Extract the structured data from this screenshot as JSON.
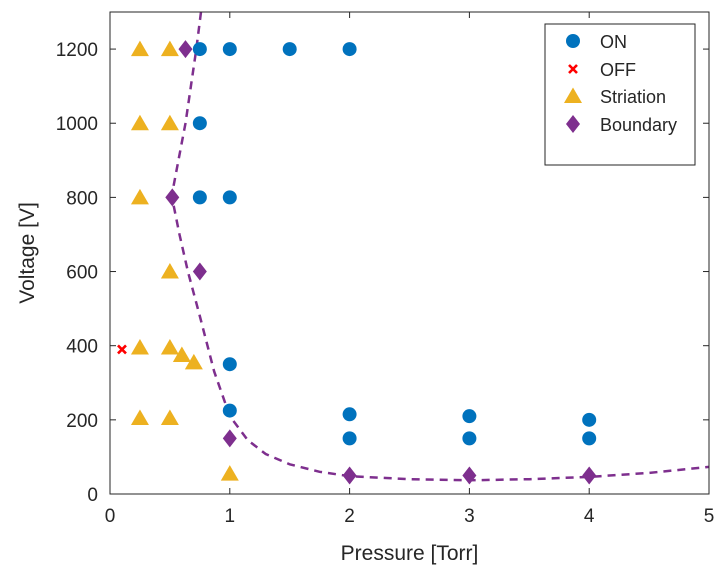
{
  "chart_data": {
    "type": "scatter",
    "xlabel": "Pressure [Torr]",
    "ylabel": "Voltage [V]",
    "xlim": [
      0,
      5
    ],
    "ylim": [
      0,
      1300
    ],
    "xticks": [
      0,
      1,
      2,
      3,
      4,
      5
    ],
    "yticks": [
      0,
      200,
      400,
      600,
      800,
      1000,
      1200
    ],
    "grid": false,
    "legend_position": "top-right",
    "series": [
      {
        "name": "ON",
        "marker": "circle",
        "color": "#0072BD",
        "points": [
          [
            0.75,
            1200
          ],
          [
            1,
            1200
          ],
          [
            1.5,
            1200
          ],
          [
            2,
            1200
          ],
          [
            0.75,
            1000
          ],
          [
            0.75,
            800
          ],
          [
            1,
            800
          ],
          [
            1,
            350
          ],
          [
            1,
            225
          ],
          [
            2,
            215
          ],
          [
            2,
            150
          ],
          [
            3,
            210
          ],
          [
            3,
            150
          ],
          [
            4,
            200
          ],
          [
            4,
            150
          ]
        ]
      },
      {
        "name": "OFF",
        "marker": "x",
        "color": "#FF0000",
        "points": [
          [
            0.1,
            390
          ]
        ]
      },
      {
        "name": "Striation",
        "marker": "triangle",
        "color": "#EDB120",
        "points": [
          [
            0.25,
            1200
          ],
          [
            0.5,
            1200
          ],
          [
            0.25,
            1000
          ],
          [
            0.5,
            1000
          ],
          [
            0.25,
            800
          ],
          [
            0.5,
            600
          ],
          [
            0.25,
            395
          ],
          [
            0.5,
            395
          ],
          [
            0.6,
            375
          ],
          [
            0.7,
            355
          ],
          [
            0.25,
            205
          ],
          [
            0.5,
            205
          ],
          [
            1,
            55
          ]
        ]
      },
      {
        "name": "Boundary",
        "marker": "diamond",
        "color": "#7E2F8E",
        "points": [
          [
            0.63,
            1200
          ],
          [
            0.52,
            800
          ],
          [
            0.75,
            600
          ],
          [
            1,
            150
          ],
          [
            2,
            50
          ],
          [
            3,
            50
          ],
          [
            4,
            50
          ]
        ]
      }
    ],
    "boundary_curve": {
      "style": "dashed",
      "color": "#7E2F8E",
      "points": [
        [
          0.76,
          1300
        ],
        [
          0.72,
          1200
        ],
        [
          0.63,
          1000
        ],
        [
          0.53,
          830
        ],
        [
          0.53,
          780
        ],
        [
          0.58,
          700
        ],
        [
          0.65,
          600
        ],
        [
          0.75,
          480
        ],
        [
          0.87,
          330
        ],
        [
          1,
          210
        ],
        [
          1.15,
          145
        ],
        [
          1.3,
          108
        ],
        [
          1.5,
          80
        ],
        [
          1.75,
          60
        ],
        [
          2,
          48
        ],
        [
          2.5,
          40
        ],
        [
          3,
          37
        ],
        [
          3.5,
          40
        ],
        [
          4,
          46
        ],
        [
          4.5,
          57
        ],
        [
          5,
          73
        ]
      ]
    }
  }
}
